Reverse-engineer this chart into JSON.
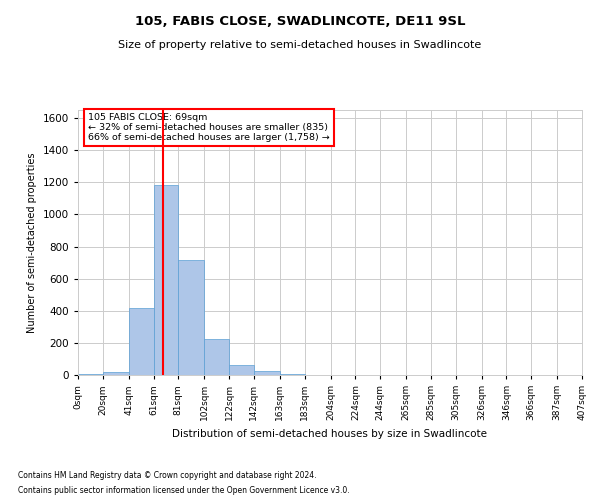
{
  "title": "105, FABIS CLOSE, SWADLINCOTE, DE11 9SL",
  "subtitle": "Size of property relative to semi-detached houses in Swadlincote",
  "xlabel": "Distribution of semi-detached houses by size in Swadlincote",
  "ylabel": "Number of semi-detached properties",
  "footer_line1": "Contains HM Land Registry data © Crown copyright and database right 2024.",
  "footer_line2": "Contains public sector information licensed under the Open Government Licence v3.0.",
  "annotation_title": "105 FABIS CLOSE: 69sqm",
  "annotation_line1": "← 32% of semi-detached houses are smaller (835)",
  "annotation_line2": "66% of semi-detached houses are larger (1,758) →",
  "bar_color": "#aec6e8",
  "bar_edge_color": "#5a9fd4",
  "property_line_x": 69,
  "property_line_color": "red",
  "ylim": [
    0,
    1650
  ],
  "yticks": [
    0,
    200,
    400,
    600,
    800,
    1000,
    1200,
    1400,
    1600
  ],
  "bin_edges": [
    0,
    20,
    41,
    61,
    81,
    102,
    122,
    142,
    163,
    183,
    204,
    224,
    244,
    265,
    285,
    305,
    326,
    346,
    366,
    387,
    407
  ],
  "bin_labels": [
    "0sqm",
    "20sqm",
    "41sqm",
    "61sqm",
    "81sqm",
    "102sqm",
    "122sqm",
    "142sqm",
    "163sqm",
    "183sqm",
    "204sqm",
    "224sqm",
    "244sqm",
    "265sqm",
    "285sqm",
    "305sqm",
    "326sqm",
    "346sqm",
    "366sqm",
    "387sqm",
    "407sqm"
  ],
  "counts": [
    5,
    20,
    420,
    1180,
    715,
    225,
    60,
    25,
    5,
    2,
    1,
    0,
    0,
    0,
    0,
    0,
    0,
    0,
    0,
    0
  ]
}
